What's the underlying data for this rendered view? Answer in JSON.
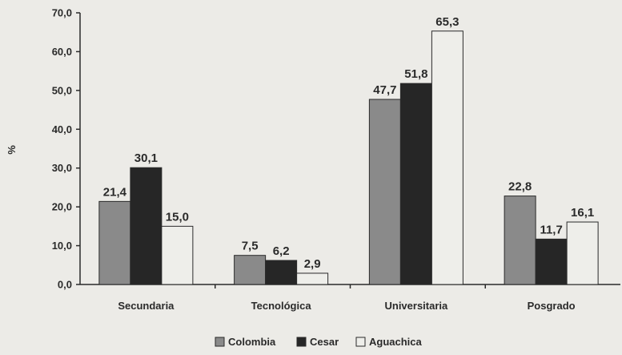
{
  "chart_data": {
    "type": "bar",
    "ylabel": "%",
    "xlabel": "",
    "ylim": [
      0,
      70
    ],
    "yticks": [
      "0,0",
      "10,0",
      "20,0",
      "30,0",
      "40,0",
      "50,0",
      "60,0",
      "70,0"
    ],
    "ytick_values": [
      0,
      10,
      20,
      30,
      40,
      50,
      60,
      70
    ],
    "categories": [
      "Secundaria",
      "Tecnológica",
      "Universitaria",
      "Posgrado"
    ],
    "series": [
      {
        "name": "Colombia",
        "color": "#8a8a8a",
        "values": [
          21.4,
          7.5,
          47.7,
          22.8
        ],
        "labels": [
          "21,4",
          "7,5",
          "47,7",
          "22,8"
        ]
      },
      {
        "name": "Cesar",
        "color": "#262626",
        "values": [
          30.1,
          6.2,
          51.8,
          11.7
        ],
        "labels": [
          "30,1",
          "6,2",
          "51,8",
          "11,7"
        ]
      },
      {
        "name": "Aguachica",
        "color": "#eeeeea",
        "values": [
          15.0,
          2.9,
          65.3,
          16.1
        ],
        "labels": [
          "15,0",
          "2,9",
          "65,3",
          "16,1"
        ]
      }
    ],
    "legend_position": "bottom-center",
    "grid": false
  }
}
